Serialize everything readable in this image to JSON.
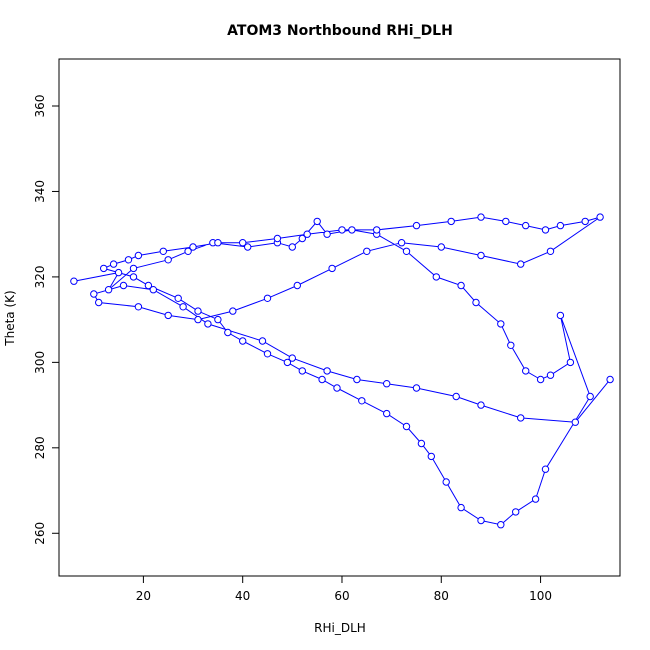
{
  "chart_data": {
    "type": "line",
    "title": "ATOM3 Northbound RHi_DLH",
    "xlabel": "RHi_DLH",
    "ylabel": "Theta (K)",
    "xlim": [
      3,
      116
    ],
    "ylim": [
      250,
      371
    ],
    "xticks": [
      20,
      40,
      60,
      80,
      100
    ],
    "yticks": [
      260,
      280,
      300,
      320,
      340,
      360
    ],
    "markers": "open-circle",
    "line_color": "#0000ff",
    "grid": false,
    "x": [
      6,
      15,
      13,
      18,
      25,
      29,
      34,
      41,
      47,
      50,
      52,
      55,
      57,
      62,
      67,
      73,
      79,
      84,
      87,
      92,
      94,
      97,
      100,
      102,
      106,
      104,
      110,
      101,
      99,
      95,
      92,
      88,
      84,
      81,
      78,
      76,
      73,
      69,
      64,
      59,
      56,
      52,
      49,
      45,
      40,
      37,
      35,
      31,
      27,
      21,
      18,
      12,
      14,
      17,
      19,
      24,
      30,
      35,
      40,
      47,
      53,
      60,
      67,
      75,
      82,
      88,
      93,
      97,
      101,
      104,
      109,
      112,
      102,
      96,
      88,
      80,
      72,
      65,
      58,
      51,
      45,
      38,
      31,
      25,
      19,
      11,
      10,
      16,
      22,
      28,
      33,
      44,
      50,
      57,
      63,
      69,
      75,
      83,
      88,
      96,
      107,
      114
    ],
    "y": [
      319,
      321,
      317,
      322,
      324,
      326,
      328,
      327,
      328,
      327,
      329,
      333,
      330,
      331,
      330,
      326,
      320,
      318,
      314,
      309,
      304,
      298,
      296,
      297,
      300,
      311,
      292,
      275,
      268,
      265,
      262,
      263,
      266,
      272,
      278,
      281,
      285,
      288,
      291,
      294,
      296,
      298,
      300,
      302,
      305,
      307,
      310,
      312,
      315,
      318,
      320,
      322,
      323,
      324,
      325,
      326,
      327,
      328,
      328,
      329,
      330,
      331,
      331,
      332,
      333,
      334,
      333,
      332,
      331,
      332,
      333,
      334,
      326,
      323,
      325,
      327,
      328,
      326,
      322,
      318,
      315,
      312,
      310,
      311,
      313,
      314,
      316,
      318,
      317,
      313,
      309,
      305,
      301,
      298,
      296,
      295,
      294,
      292,
      290,
      287,
      286,
      296
    ]
  }
}
